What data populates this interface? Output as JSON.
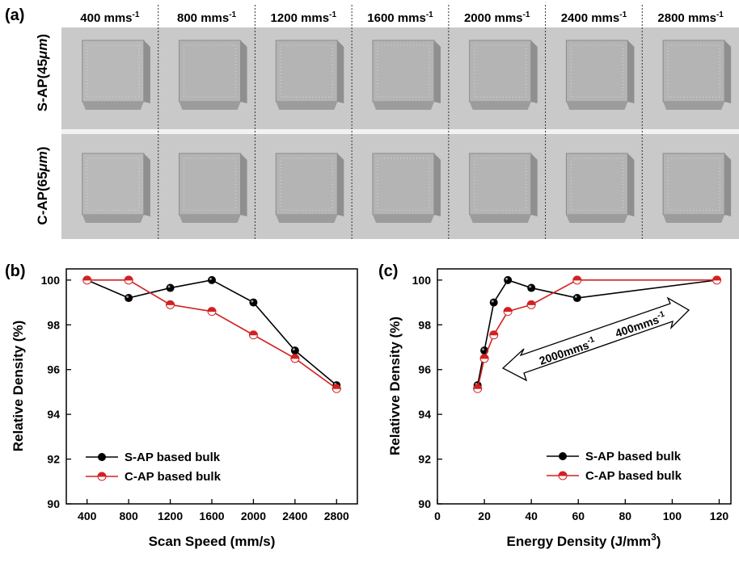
{
  "figure": {
    "panel_a_label": "(a)",
    "panel_b_label": "(b)",
    "panel_c_label": "(c)",
    "row_labels": [
      {
        "base": "S-AP(45",
        "unit": "μm",
        "close": ")"
      },
      {
        "base": "C-AP(65",
        "unit": "μm",
        "close": ")"
      }
    ],
    "scan_speeds": [
      {
        "value": "400 mms",
        "sup": "-1"
      },
      {
        "value": "800 mms",
        "sup": "-1"
      },
      {
        "value": "1200 mms",
        "sup": "-1"
      },
      {
        "value": "1600 mms",
        "sup": "-1"
      },
      {
        "value": "2000 mms",
        "sup": "-1"
      },
      {
        "value": "2400 mms",
        "sup": "-1"
      },
      {
        "value": "2800 mms",
        "sup": "-1"
      }
    ]
  },
  "colors": {
    "s_ap": "#000000",
    "c_ap": "#d42020",
    "photo_bg": "#c9c9c9",
    "cube": "#b6b6b6"
  },
  "chart_data": [
    {
      "type": "line",
      "panel": "b",
      "title": "",
      "xlabel": "Scan Speed (mm/s)",
      "ylabel": "Relative Density (%)",
      "xlim": [
        200,
        3000
      ],
      "ylim": [
        90,
        100.5
      ],
      "xticks": [
        400,
        800,
        1200,
        1600,
        2000,
        2400,
        2800
      ],
      "yticks": [
        90,
        92,
        94,
        96,
        98,
        100
      ],
      "series": [
        {
          "name": "S-AP based bulk",
          "color": "#000000",
          "x": [
            400,
            800,
            1200,
            1600,
            2000,
            2400,
            2800
          ],
          "y": [
            100.0,
            99.2,
            99.65,
            100.0,
            99.0,
            96.85,
            95.3
          ]
        },
        {
          "name": "C-AP based bulk",
          "color": "#d42020",
          "x": [
            400,
            800,
            1200,
            1600,
            2000,
            2400,
            2800
          ],
          "y": [
            100.0,
            100.0,
            98.9,
            98.6,
            97.55,
            96.5,
            95.15
          ]
        }
      ],
      "legend": "bottom-left",
      "grid": false
    },
    {
      "type": "line",
      "panel": "c",
      "title": "",
      "xlabel": "Energy Density (J/mm",
      "xlabel_sup": "3",
      "xlabel_close": ")",
      "ylabel": "Relativve Density (%)",
      "xlim": [
        0,
        125
      ],
      "ylim": [
        90,
        100.5
      ],
      "xticks": [
        0,
        20,
        40,
        60,
        80,
        100,
        120
      ],
      "yticks": [
        90,
        92,
        94,
        96,
        98,
        100
      ],
      "series": [
        {
          "name": "S-AP based bulk",
          "color": "#000000",
          "x": [
            17.1,
            20.0,
            24.0,
            30.0,
            40.0,
            59.5,
            119.0
          ],
          "y": [
            95.3,
            96.85,
            99.0,
            100.0,
            99.65,
            99.2,
            100.0
          ]
        },
        {
          "name": "C-AP based bulk",
          "color": "#d42020",
          "x": [
            17.1,
            20.0,
            24.0,
            30.0,
            40.0,
            59.5,
            119.0
          ],
          "y": [
            95.15,
            96.5,
            97.55,
            98.6,
            98.9,
            100.0,
            100.0
          ]
        }
      ],
      "legend": "bottom-right",
      "annotations": [
        {
          "text": "2000mms",
          "sup": "-1"
        },
        {
          "text": "400mms",
          "sup": "-1"
        }
      ],
      "grid": false
    }
  ]
}
